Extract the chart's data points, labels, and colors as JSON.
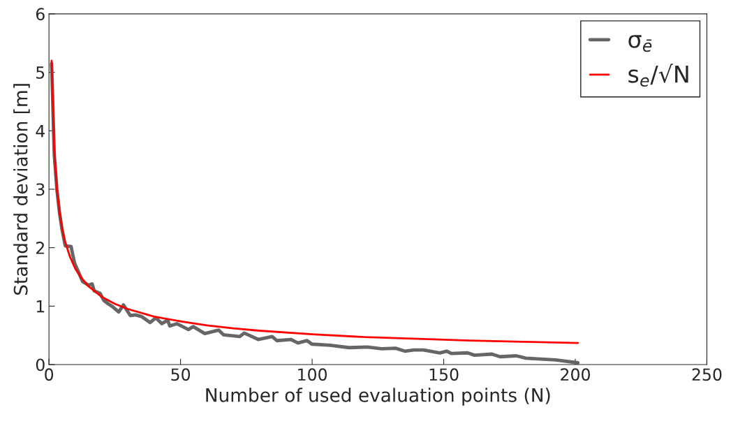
{
  "chart_data": {
    "type": "line",
    "xlabel": "Number of used evaluation points (N)",
    "ylabel": "Standard deviation [m]",
    "xlim": [
      0,
      250
    ],
    "xticks": [
      0,
      50,
      100,
      150,
      200,
      250
    ],
    "ylim": [
      0,
      6
    ],
    "yticks": [
      0,
      1,
      2,
      3,
      4,
      5,
      6
    ],
    "grid": false,
    "legend": "top right",
    "marker": "none",
    "line_style": "solid",
    "series": [
      {
        "name": "σ$_{ē}$",
        "color": "#666666",
        "x": [
          1,
          2,
          3,
          4,
          5,
          6.2,
          8.4,
          9.7,
          12.8,
          15,
          16.4,
          17.2,
          19.4,
          20.8,
          22.5,
          23.9,
          26.5,
          28.3,
          30.9,
          32.9,
          35.3,
          38.4,
          40.6,
          42.9,
          45.1,
          45.9,
          48.6,
          53,
          54.8,
          59.2,
          64.5,
          66.3,
          72.5,
          74.2,
          79.5,
          84.8,
          86.6,
          91.9,
          94.6,
          98.1,
          99.9,
          106.9,
          114,
          121,
          126.4,
          131.7,
          135.2,
          138.7,
          142.3,
          148.5,
          151.1,
          152.9,
          159.1,
          161.7,
          168.3,
          171.4,
          177.6,
          181.2,
          192.6,
          201
        ],
        "values": [
          5.15,
          3.6,
          3.0,
          2.6,
          2.3,
          2.03,
          2.02,
          1.74,
          1.42,
          1.36,
          1.38,
          1.26,
          1.22,
          1.1,
          1.04,
          1.0,
          0.9,
          1.02,
          0.84,
          0.85,
          0.82,
          0.72,
          0.8,
          0.7,
          0.76,
          0.66,
          0.7,
          0.6,
          0.65,
          0.53,
          0.59,
          0.51,
          0.48,
          0.54,
          0.43,
          0.48,
          0.41,
          0.43,
          0.37,
          0.41,
          0.35,
          0.33,
          0.29,
          0.3,
          0.27,
          0.28,
          0.23,
          0.25,
          0.25,
          0.2,
          0.23,
          0.19,
          0.2,
          0.16,
          0.18,
          0.135,
          0.15,
          0.11,
          0.08,
          0.03
        ]
      },
      {
        "name": "s$_{e}$/√N",
        "color": "#ff0000",
        "x": [
          1,
          2,
          3,
          4,
          5,
          6,
          8,
          10,
          12,
          15,
          20,
          25,
          30,
          40,
          50,
          60,
          70,
          80,
          100,
          120,
          140,
          160,
          180,
          201
        ],
        "values": [
          5.2,
          3.68,
          3.0,
          2.6,
          2.33,
          2.12,
          1.84,
          1.64,
          1.5,
          1.34,
          1.16,
          1.04,
          0.95,
          0.82,
          0.74,
          0.67,
          0.62,
          0.58,
          0.52,
          0.47,
          0.44,
          0.41,
          0.39,
          0.37
        ]
      }
    ]
  }
}
